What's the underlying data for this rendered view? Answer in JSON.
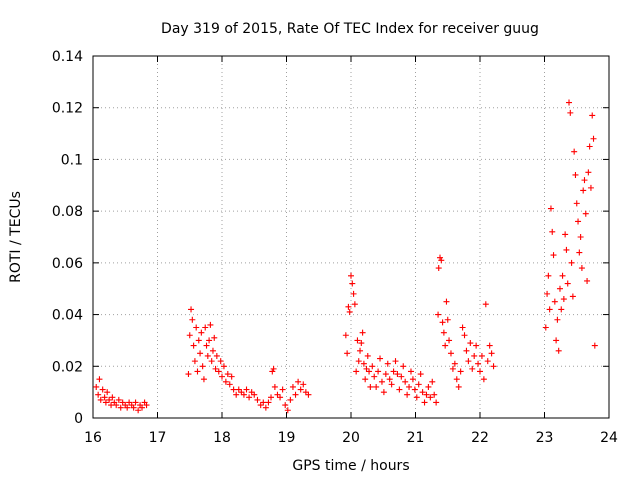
{
  "chart_data": {
    "type": "scatter",
    "title": "Day 319 of 2015, Rate Of TEC Index for receiver guug",
    "xlabel": "GPS time / hours",
    "ylabel": "ROTI / TECUs",
    "xlim": [
      16,
      24
    ],
    "ylim": [
      0,
      0.14
    ],
    "xticks": [
      16,
      17,
      18,
      19,
      20,
      21,
      22,
      23,
      24
    ],
    "xtick_labels": [
      "16",
      "17",
      "18",
      "19",
      "20",
      "21",
      "22",
      "23",
      "24"
    ],
    "yticks": [
      0,
      0.02,
      0.04,
      0.06,
      0.08,
      0.1,
      0.12,
      0.14
    ],
    "ytick_labels": [
      "0",
      "0.02",
      "0.04",
      "0.06",
      "0.08",
      "0.1",
      "0.12",
      "0.14"
    ],
    "grid": true,
    "marker": "+",
    "color": "#ff0000",
    "series": [
      {
        "name": "ROTI",
        "points": [
          [
            16.05,
            0.012
          ],
          [
            16.08,
            0.009
          ],
          [
            16.1,
            0.015
          ],
          [
            16.12,
            0.007
          ],
          [
            16.15,
            0.011
          ],
          [
            16.18,
            0.008
          ],
          [
            16.2,
            0.006
          ],
          [
            16.22,
            0.01
          ],
          [
            16.25,
            0.007
          ],
          [
            16.28,
            0.005
          ],
          [
            16.3,
            0.008
          ],
          [
            16.33,
            0.006
          ],
          [
            16.36,
            0.005
          ],
          [
            16.4,
            0.007
          ],
          [
            16.43,
            0.004
          ],
          [
            16.46,
            0.006
          ],
          [
            16.5,
            0.005
          ],
          [
            16.53,
            0.004
          ],
          [
            16.56,
            0.006
          ],
          [
            16.6,
            0.005
          ],
          [
            16.63,
            0.004
          ],
          [
            16.66,
            0.006
          ],
          [
            16.7,
            0.003
          ],
          [
            16.73,
            0.005
          ],
          [
            16.76,
            0.004
          ],
          [
            16.8,
            0.006
          ],
          [
            16.83,
            0.005
          ],
          [
            17.48,
            0.017
          ],
          [
            17.5,
            0.032
          ],
          [
            17.52,
            0.042
          ],
          [
            17.54,
            0.038
          ],
          [
            17.56,
            0.028
          ],
          [
            17.58,
            0.022
          ],
          [
            17.6,
            0.035
          ],
          [
            17.62,
            0.018
          ],
          [
            17.64,
            0.03
          ],
          [
            17.66,
            0.025
          ],
          [
            17.68,
            0.033
          ],
          [
            17.7,
            0.02
          ],
          [
            17.72,
            0.015
          ],
          [
            17.74,
            0.035
          ],
          [
            17.76,
            0.028
          ],
          [
            17.78,
            0.024
          ],
          [
            17.8,
            0.03
          ],
          [
            17.82,
            0.036
          ],
          [
            17.84,
            0.022
          ],
          [
            17.86,
            0.026
          ],
          [
            17.88,
            0.031
          ],
          [
            17.9,
            0.019
          ],
          [
            17.92,
            0.024
          ],
          [
            17.95,
            0.018
          ],
          [
            17.98,
            0.022
          ],
          [
            18.0,
            0.016
          ],
          [
            18.03,
            0.02
          ],
          [
            18.06,
            0.014
          ],
          [
            18.09,
            0.017
          ],
          [
            18.12,
            0.013
          ],
          [
            18.15,
            0.016
          ],
          [
            18.18,
            0.011
          ],
          [
            18.22,
            0.009
          ],
          [
            18.26,
            0.011
          ],
          [
            18.3,
            0.01
          ],
          [
            18.34,
            0.009
          ],
          [
            18.38,
            0.011
          ],
          [
            18.42,
            0.008
          ],
          [
            18.46,
            0.01
          ],
          [
            18.5,
            0.009
          ],
          [
            18.55,
            0.007
          ],
          [
            18.6,
            0.005
          ],
          [
            18.64,
            0.006
          ],
          [
            18.68,
            0.004
          ],
          [
            18.72,
            0.006
          ],
          [
            18.76,
            0.008
          ],
          [
            18.78,
            0.018
          ],
          [
            18.8,
            0.019
          ],
          [
            18.82,
            0.012
          ],
          [
            18.86,
            0.009
          ],
          [
            18.9,
            0.008
          ],
          [
            18.94,
            0.011
          ],
          [
            18.98,
            0.005
          ],
          [
            19.02,
            0.003
          ],
          [
            19.06,
            0.007
          ],
          [
            19.1,
            0.012
          ],
          [
            19.14,
            0.009
          ],
          [
            19.18,
            0.014
          ],
          [
            19.22,
            0.011
          ],
          [
            19.26,
            0.013
          ],
          [
            19.3,
            0.01
          ],
          [
            19.34,
            0.009
          ],
          [
            19.92,
            0.032
          ],
          [
            19.94,
            0.025
          ],
          [
            19.96,
            0.043
          ],
          [
            19.98,
            0.041
          ],
          [
            20.0,
            0.055
          ],
          [
            20.02,
            0.052
          ],
          [
            20.04,
            0.048
          ],
          [
            20.06,
            0.044
          ],
          [
            20.08,
            0.018
          ],
          [
            20.1,
            0.03
          ],
          [
            20.12,
            0.022
          ],
          [
            20.14,
            0.026
          ],
          [
            20.16,
            0.029
          ],
          [
            20.18,
            0.033
          ],
          [
            20.2,
            0.021
          ],
          [
            20.22,
            0.015
          ],
          [
            20.24,
            0.019
          ],
          [
            20.26,
            0.024
          ],
          [
            20.28,
            0.018
          ],
          [
            20.3,
            0.012
          ],
          [
            20.33,
            0.02
          ],
          [
            20.36,
            0.016
          ],
          [
            20.39,
            0.012
          ],
          [
            20.42,
            0.018
          ],
          [
            20.45,
            0.023
          ],
          [
            20.48,
            0.014
          ],
          [
            20.51,
            0.01
          ],
          [
            20.54,
            0.017
          ],
          [
            20.57,
            0.021
          ],
          [
            20.6,
            0.015
          ],
          [
            20.63,
            0.013
          ],
          [
            20.66,
            0.018
          ],
          [
            20.69,
            0.022
          ],
          [
            20.72,
            0.017
          ],
          [
            20.75,
            0.011
          ],
          [
            20.78,
            0.016
          ],
          [
            20.81,
            0.02
          ],
          [
            20.84,
            0.014
          ],
          [
            20.87,
            0.009
          ],
          [
            20.9,
            0.012
          ],
          [
            20.93,
            0.018
          ],
          [
            20.96,
            0.015
          ],
          [
            20.99,
            0.011
          ],
          [
            21.02,
            0.008
          ],
          [
            21.05,
            0.013
          ],
          [
            21.08,
            0.017
          ],
          [
            21.11,
            0.01
          ],
          [
            21.14,
            0.006
          ],
          [
            21.17,
            0.009
          ],
          [
            21.2,
            0.012
          ],
          [
            21.23,
            0.008
          ],
          [
            21.26,
            0.014
          ],
          [
            21.29,
            0.009
          ],
          [
            21.32,
            0.006
          ],
          [
            21.35,
            0.04
          ],
          [
            21.36,
            0.058
          ],
          [
            21.38,
            0.062
          ],
          [
            21.4,
            0.061
          ],
          [
            21.42,
            0.037
          ],
          [
            21.44,
            0.033
          ],
          [
            21.46,
            0.028
          ],
          [
            21.48,
            0.045
          ],
          [
            21.5,
            0.038
          ],
          [
            21.52,
            0.03
          ],
          [
            21.55,
            0.025
          ],
          [
            21.58,
            0.019
          ],
          [
            21.61,
            0.021
          ],
          [
            21.64,
            0.015
          ],
          [
            21.67,
            0.012
          ],
          [
            21.7,
            0.018
          ],
          [
            21.73,
            0.035
          ],
          [
            21.76,
            0.032
          ],
          [
            21.79,
            0.026
          ],
          [
            21.82,
            0.022
          ],
          [
            21.85,
            0.029
          ],
          [
            21.88,
            0.019
          ],
          [
            21.91,
            0.024
          ],
          [
            21.94,
            0.028
          ],
          [
            21.97,
            0.021
          ],
          [
            22.0,
            0.018
          ],
          [
            22.03,
            0.024
          ],
          [
            22.06,
            0.015
          ],
          [
            22.09,
            0.044
          ],
          [
            22.12,
            0.022
          ],
          [
            22.15,
            0.028
          ],
          [
            22.18,
            0.025
          ],
          [
            22.21,
            0.02
          ],
          [
            23.02,
            0.035
          ],
          [
            23.04,
            0.048
          ],
          [
            23.06,
            0.055
          ],
          [
            23.08,
            0.042
          ],
          [
            23.1,
            0.081
          ],
          [
            23.12,
            0.072
          ],
          [
            23.14,
            0.063
          ],
          [
            23.16,
            0.045
          ],
          [
            23.18,
            0.03
          ],
          [
            23.2,
            0.038
          ],
          [
            23.22,
            0.026
          ],
          [
            23.24,
            0.05
          ],
          [
            23.26,
            0.042
          ],
          [
            23.28,
            0.055
          ],
          [
            23.3,
            0.046
          ],
          [
            23.32,
            0.071
          ],
          [
            23.34,
            0.065
          ],
          [
            23.36,
            0.052
          ],
          [
            23.38,
            0.122
          ],
          [
            23.4,
            0.118
          ],
          [
            23.42,
            0.06
          ],
          [
            23.44,
            0.047
          ],
          [
            23.46,
            0.103
          ],
          [
            23.48,
            0.094
          ],
          [
            23.5,
            0.083
          ],
          [
            23.52,
            0.076
          ],
          [
            23.54,
            0.064
          ],
          [
            23.56,
            0.07
          ],
          [
            23.58,
            0.058
          ],
          [
            23.6,
            0.088
          ],
          [
            23.62,
            0.092
          ],
          [
            23.64,
            0.079
          ],
          [
            23.66,
            0.053
          ],
          [
            23.68,
            0.095
          ],
          [
            23.7,
            0.105
          ],
          [
            23.72,
            0.089
          ],
          [
            23.74,
            0.117
          ],
          [
            23.76,
            0.108
          ],
          [
            23.78,
            0.028
          ]
        ]
      }
    ]
  }
}
